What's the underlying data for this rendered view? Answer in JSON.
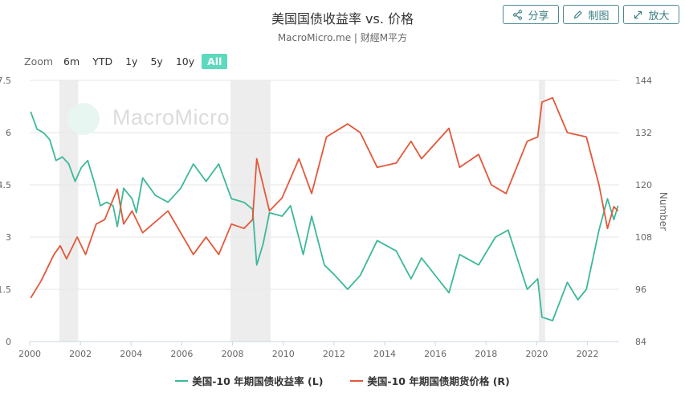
{
  "header": {
    "title": "美国国债收益率 vs. 价格",
    "subtitle": "MacroMicro.me | 财經M平方"
  },
  "toolbar": {
    "share_label": "分享",
    "draw_label": "制图",
    "zoom_label": "放大"
  },
  "range_selector": {
    "label": "Zoom",
    "buttons": [
      "6m",
      "YTD",
      "1y",
      "5y",
      "10y",
      "All"
    ],
    "active": "All"
  },
  "watermark": {
    "text": "MacroMicro"
  },
  "colors": {
    "yield": "#3cb89a",
    "price": "#e4573a",
    "recession": "#ededed"
  },
  "chart_data": {
    "type": "line",
    "x_type": "date",
    "xlim": [
      "2000-01-01",
      "2023-03-31"
    ],
    "x_ticks": [
      "2000",
      "2002",
      "2004",
      "2006",
      "2008",
      "2010",
      "2012",
      "2014",
      "2016",
      "2018",
      "2020",
      "2022"
    ],
    "y_left": {
      "label": "",
      "lim": [
        0,
        7.5
      ],
      "ticks": [
        "0",
        "1.5",
        "3",
        "4.5",
        "6",
        "7.5"
      ]
    },
    "y_right": {
      "label": "Number",
      "lim": [
        84,
        144
      ],
      "ticks": [
        "84",
        "96",
        "108",
        "120",
        "132",
        "144"
      ]
    },
    "grid": true,
    "legend_position": "bottom",
    "shaded_periods": [
      [
        "2001-03-01",
        "2001-11-30"
      ],
      [
        "2007-12-01",
        "2009-06-30"
      ],
      [
        "2020-02-01",
        "2020-04-30"
      ]
    ],
    "series": [
      {
        "name": "美国-10 年期国债收益率 (L)",
        "axis": "left",
        "points": [
          [
            "2000-01",
            6.6
          ],
          [
            "2000-04",
            6.1
          ],
          [
            "2000-07",
            6.0
          ],
          [
            "2000-10",
            5.8
          ],
          [
            "2001-01",
            5.2
          ],
          [
            "2001-04",
            5.3
          ],
          [
            "2001-07",
            5.1
          ],
          [
            "2001-10",
            4.6
          ],
          [
            "2002-01",
            5.0
          ],
          [
            "2002-04",
            5.2
          ],
          [
            "2002-07",
            4.6
          ],
          [
            "2002-10",
            3.9
          ],
          [
            "2003-01",
            4.0
          ],
          [
            "2003-04",
            3.9
          ],
          [
            "2003-06",
            3.3
          ],
          [
            "2003-09",
            4.4
          ],
          [
            "2004-01",
            4.1
          ],
          [
            "2004-03",
            3.7
          ],
          [
            "2004-06",
            4.7
          ],
          [
            "2004-12",
            4.2
          ],
          [
            "2005-06",
            4.0
          ],
          [
            "2005-12",
            4.4
          ],
          [
            "2006-06",
            5.1
          ],
          [
            "2006-12",
            4.6
          ],
          [
            "2007-06",
            5.1
          ],
          [
            "2007-12",
            4.1
          ],
          [
            "2008-06",
            4.0
          ],
          [
            "2008-10",
            3.8
          ],
          [
            "2008-12",
            2.2
          ],
          [
            "2009-03",
            2.8
          ],
          [
            "2009-06",
            3.7
          ],
          [
            "2009-12",
            3.6
          ],
          [
            "2010-04",
            3.9
          ],
          [
            "2010-10",
            2.5
          ],
          [
            "2011-02",
            3.6
          ],
          [
            "2011-08",
            2.2
          ],
          [
            "2012-01",
            1.9
          ],
          [
            "2012-07",
            1.5
          ],
          [
            "2013-01",
            1.9
          ],
          [
            "2013-09",
            2.9
          ],
          [
            "2014-06",
            2.6
          ],
          [
            "2015-01",
            1.8
          ],
          [
            "2015-06",
            2.4
          ],
          [
            "2016-07",
            1.4
          ],
          [
            "2016-12",
            2.5
          ],
          [
            "2017-09",
            2.2
          ],
          [
            "2018-05",
            3.0
          ],
          [
            "2018-11",
            3.2
          ],
          [
            "2019-08",
            1.5
          ],
          [
            "2020-01",
            1.8
          ],
          [
            "2020-03",
            0.7
          ],
          [
            "2020-08",
            0.6
          ],
          [
            "2021-03",
            1.7
          ],
          [
            "2021-08",
            1.2
          ],
          [
            "2021-12",
            1.5
          ],
          [
            "2022-06",
            3.2
          ],
          [
            "2022-10",
            4.1
          ],
          [
            "2023-01",
            3.5
          ],
          [
            "2023-03",
            3.9
          ]
        ]
      },
      {
        "name": "美国-10 年期国债期货价格 (R)",
        "axis": "right",
        "points": [
          [
            "2000-01",
            94
          ],
          [
            "2000-06",
            98
          ],
          [
            "2000-12",
            104
          ],
          [
            "2001-03",
            106
          ],
          [
            "2001-06",
            103
          ],
          [
            "2001-11",
            108
          ],
          [
            "2002-03",
            104
          ],
          [
            "2002-08",
            111
          ],
          [
            "2002-12",
            112
          ],
          [
            "2003-06",
            119
          ],
          [
            "2003-09",
            111
          ],
          [
            "2004-01",
            114
          ],
          [
            "2004-06",
            109
          ],
          [
            "2005-06",
            114
          ],
          [
            "2006-06",
            104
          ],
          [
            "2006-12",
            108
          ],
          [
            "2007-06",
            104
          ],
          [
            "2007-12",
            111
          ],
          [
            "2008-06",
            110
          ],
          [
            "2008-10",
            112
          ],
          [
            "2008-12",
            126
          ],
          [
            "2009-06",
            114
          ],
          [
            "2009-12",
            117
          ],
          [
            "2010-08",
            126
          ],
          [
            "2011-02",
            118
          ],
          [
            "2011-09",
            131
          ],
          [
            "2012-07",
            134
          ],
          [
            "2013-01",
            132
          ],
          [
            "2013-09",
            124
          ],
          [
            "2014-06",
            125
          ],
          [
            "2015-01",
            130
          ],
          [
            "2015-06",
            126
          ],
          [
            "2016-07",
            133
          ],
          [
            "2016-12",
            124
          ],
          [
            "2017-09",
            127
          ],
          [
            "2018-03",
            120
          ],
          [
            "2018-10",
            118
          ],
          [
            "2019-08",
            130
          ],
          [
            "2020-01",
            131
          ],
          [
            "2020-03",
            139
          ],
          [
            "2020-08",
            140
          ],
          [
            "2021-03",
            132
          ],
          [
            "2021-12",
            131
          ],
          [
            "2022-06",
            120
          ],
          [
            "2022-10",
            110
          ],
          [
            "2023-01",
            115
          ],
          [
            "2023-03",
            114
          ]
        ]
      }
    ]
  }
}
